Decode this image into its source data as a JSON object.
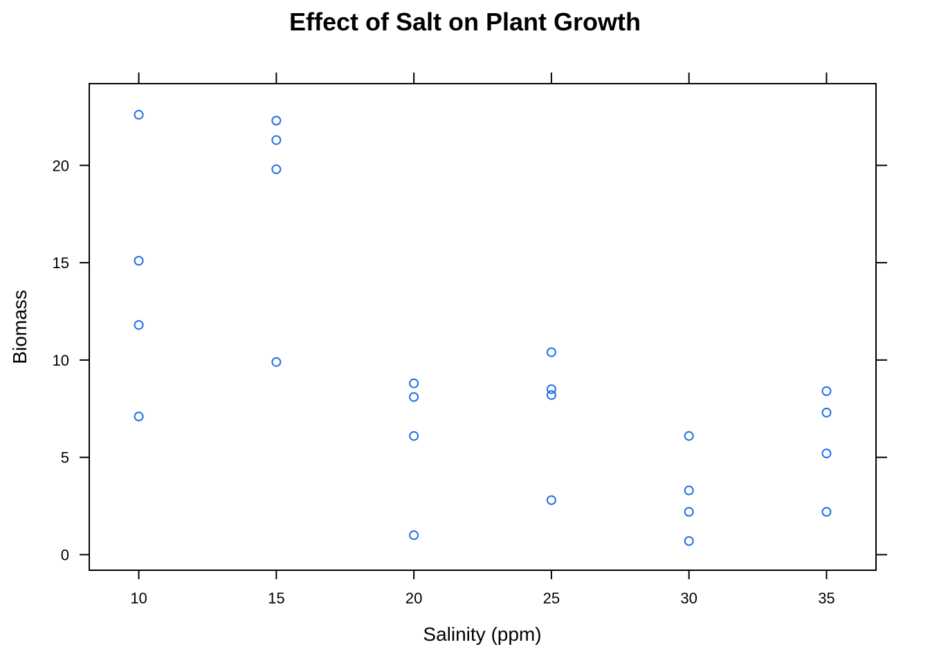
{
  "chart_data": {
    "type": "scatter",
    "title": "Effect of Salt on Plant Growth",
    "xlabel": "Salinity (ppm)",
    "ylabel": "Biomass",
    "xlim": [
      8.2,
      36.8
    ],
    "ylim": [
      -0.8,
      24.2
    ],
    "x_ticks": [
      10,
      15,
      20,
      25,
      30,
      35
    ],
    "y_ticks": [
      0,
      5,
      10,
      15,
      20
    ],
    "grid": false,
    "marker": "open-circle",
    "point_color": "#1E6FE5",
    "series": [
      {
        "points": [
          {
            "x": 10,
            "y": 22.6
          },
          {
            "x": 10,
            "y": 15.1
          },
          {
            "x": 10,
            "y": 11.8
          },
          {
            "x": 10,
            "y": 7.1
          },
          {
            "x": 15,
            "y": 22.3
          },
          {
            "x": 15,
            "y": 21.3
          },
          {
            "x": 15,
            "y": 19.8
          },
          {
            "x": 15,
            "y": 9.9
          },
          {
            "x": 20,
            "y": 8.8
          },
          {
            "x": 20,
            "y": 8.1
          },
          {
            "x": 20,
            "y": 6.1
          },
          {
            "x": 20,
            "y": 1.0
          },
          {
            "x": 25,
            "y": 10.4
          },
          {
            "x": 25,
            "y": 8.5
          },
          {
            "x": 25,
            "y": 8.2
          },
          {
            "x": 25,
            "y": 2.8
          },
          {
            "x": 30,
            "y": 6.1
          },
          {
            "x": 30,
            "y": 3.3
          },
          {
            "x": 30,
            "y": 2.2
          },
          {
            "x": 30,
            "y": 0.7
          },
          {
            "x": 35,
            "y": 8.4
          },
          {
            "x": 35,
            "y": 7.3
          },
          {
            "x": 35,
            "y": 5.2
          },
          {
            "x": 35,
            "y": 2.2
          }
        ]
      }
    ]
  }
}
